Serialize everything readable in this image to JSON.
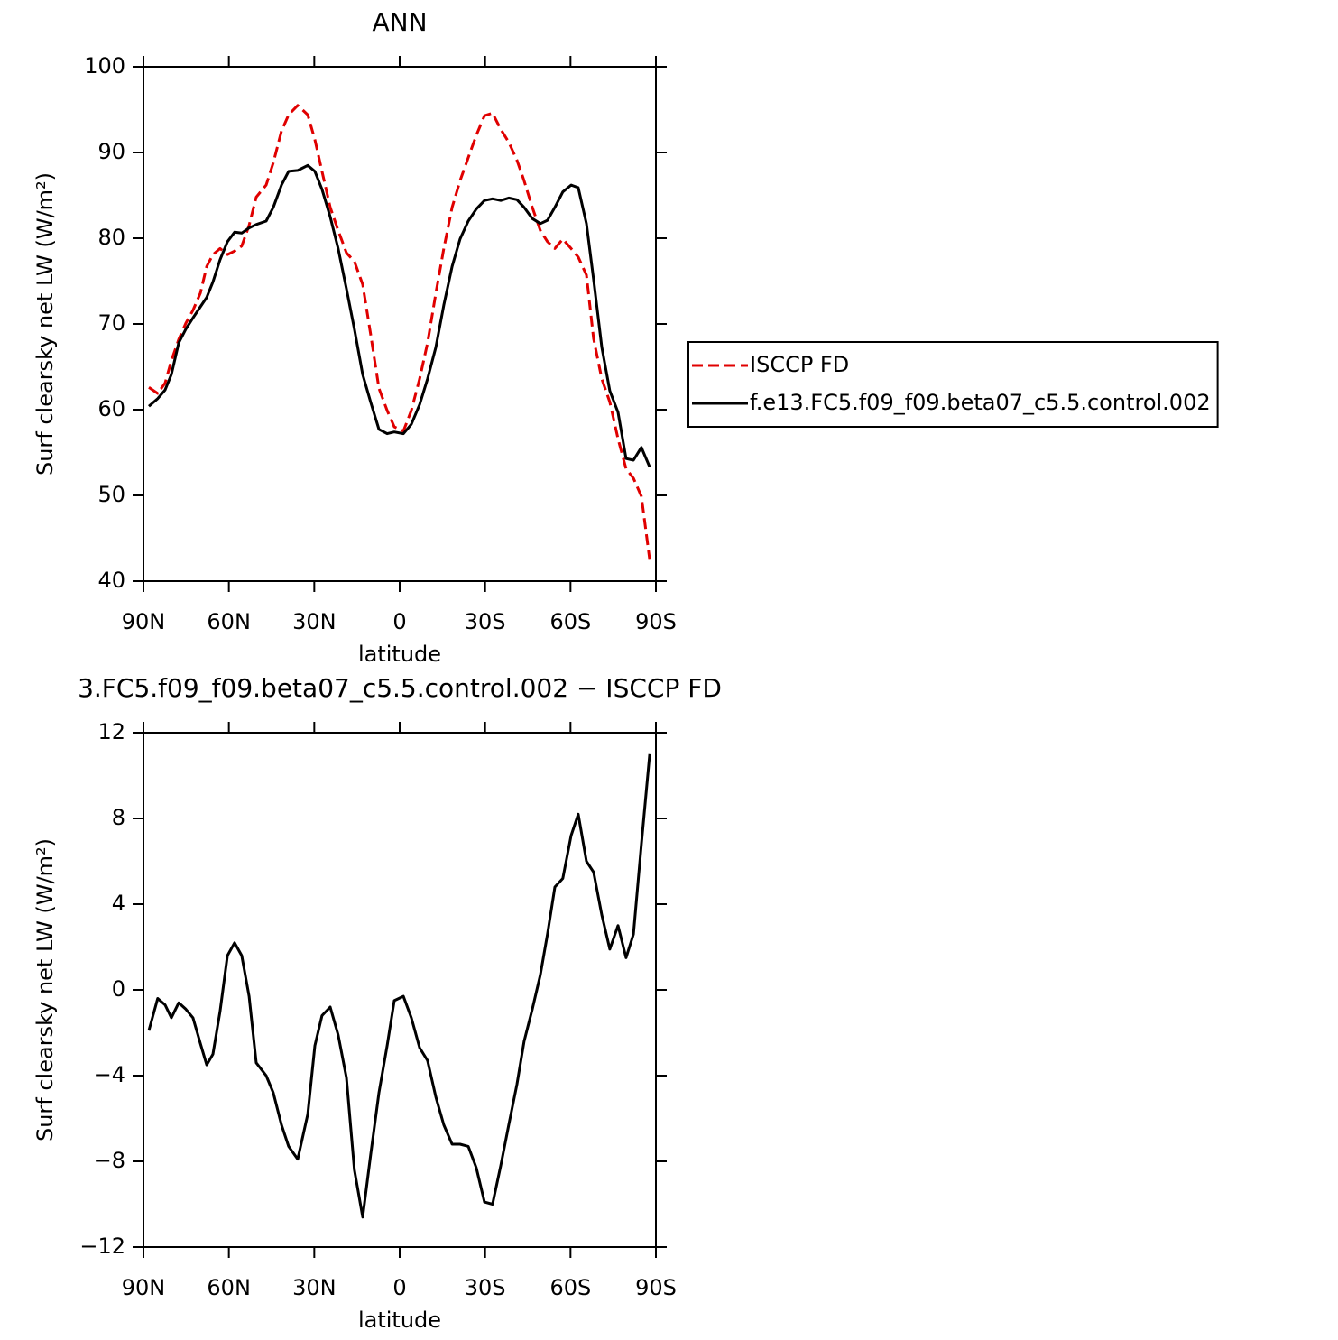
{
  "chart_data": [
    {
      "type": "line",
      "title": "ANN",
      "xlabel": "latitude",
      "ylabel": "Surf clearsky net LW (W/m²)",
      "xlim": [
        90,
        -90
      ],
      "xticks": [
        {
          "value": 90,
          "label": "90N"
        },
        {
          "value": 60,
          "label": "60N"
        },
        {
          "value": 30,
          "label": "30N"
        },
        0,
        {
          "value": -30,
          "label": "30S"
        },
        {
          "value": -60,
          "label": "60S"
        },
        {
          "value": -90,
          "label": "90S"
        }
      ],
      "ylim": [
        40,
        100
      ],
      "yticks": [
        40,
        50,
        60,
        70,
        80,
        90,
        100
      ],
      "legend": "right",
      "x": [
        88.1,
        85,
        82.4,
        80.2,
        77.6,
        75.1,
        72.6,
        70,
        67.8,
        65.6,
        63.1,
        60.5,
        58,
        55.5,
        52.9,
        50.4,
        46.9,
        44.4,
        41.5,
        39,
        35.8,
        32.3,
        29.8,
        27.3,
        24.4,
        21.6,
        18.7,
        15.9,
        13,
        10.2,
        7.3,
        4.4,
        1.9,
        -1.3,
        -4.1,
        -7,
        -9.8,
        -12.7,
        -15.5,
        -18.4,
        -21.2,
        -24.1,
        -26.9,
        -29.8,
        -32.6,
        -35.5,
        -38.3,
        -41.2,
        -43.7,
        -46.6,
        -49.4,
        -51.9,
        -54.5,
        -57.3,
        -60.2,
        -62.7,
        -65.6,
        -68.1,
        -71,
        -73.8,
        -76.7,
        -79.5,
        -82.1,
        -84.9,
        -87.8
      ],
      "series": [
        {
          "name": "ISCCP FD",
          "color": "#e00000",
          "linestyle": "dashed",
          "values": [
            62.6,
            61.9,
            63.1,
            65.7,
            68.2,
            70.1,
            71.6,
            73.6,
            76.7,
            78.1,
            78.8,
            78.1,
            78.5,
            79.1,
            81.5,
            84.8,
            86.2,
            88.8,
            92.5,
            94.4,
            95.5,
            94.4,
            91.5,
            87.8,
            83.6,
            80.9,
            78.3,
            77.3,
            74.6,
            68.8,
            62.5,
            59.9,
            58,
            57.5,
            59.9,
            63.6,
            67.8,
            73.6,
            78.8,
            83.6,
            86.7,
            89.4,
            92,
            94.3,
            94.6,
            92.7,
            91.2,
            89.1,
            86.7,
            83.6,
            80.9,
            79.6,
            78.8,
            79.9,
            78.8,
            77.8,
            75.7,
            68.3,
            63.6,
            60.9,
            56.6,
            53.1,
            52,
            49.9,
            42.5
          ]
        },
        {
          "name": "f.e13.FC5.f09_f09.beta07_c5.5.control.002",
          "color": "#000000",
          "linestyle": "solid",
          "values": [
            60.4,
            61.3,
            62.3,
            64.1,
            67.8,
            69.4,
            70.7,
            72,
            73.1,
            74.9,
            77.5,
            79.6,
            80.7,
            80.6,
            81.2,
            81.6,
            82,
            83.6,
            86.2,
            87.8,
            87.9,
            88.5,
            87.8,
            85.7,
            82.5,
            78.8,
            74.1,
            69.4,
            64.1,
            60.9,
            57.7,
            57.2,
            57.4,
            57.2,
            58.3,
            60.6,
            63.6,
            67.3,
            72.2,
            76.7,
            79.9,
            82,
            83.4,
            84.4,
            84.6,
            84.4,
            84.7,
            84.5,
            83.6,
            82.3,
            81.7,
            82.1,
            83.6,
            85.4,
            86.2,
            85.9,
            81.7,
            75.2,
            67.3,
            62.2,
            59.7,
            54.3,
            54.1,
            55.6,
            53.3
          ]
        }
      ]
    },
    {
      "type": "line",
      "title": "3.FC5.f09_f09.beta07_c5.5.control.002 − ISCCP FD",
      "xlabel": "latitude",
      "ylabel": "Surf clearsky net LW (W/m²)",
      "xlim": [
        90,
        -90
      ],
      "xticks": [
        {
          "value": 90,
          "label": "90N"
        },
        {
          "value": 60,
          "label": "60N"
        },
        {
          "value": 30,
          "label": "30N"
        },
        0,
        {
          "value": -30,
          "label": "30S"
        },
        {
          "value": -60,
          "label": "60S"
        },
        {
          "value": -90,
          "label": "90S"
        }
      ],
      "ylim": [
        -12,
        12
      ],
      "yticks": [
        {
          "value": -12,
          "label": "−12"
        },
        {
          "value": -8,
          "label": "−8"
        },
        {
          "value": -4,
          "label": "−4"
        },
        0,
        4,
        8,
        12
      ],
      "x": [
        88.1,
        85,
        82.4,
        80.2,
        77.6,
        75.1,
        72.6,
        70,
        67.8,
        65.6,
        63.1,
        60.5,
        58,
        55.5,
        52.9,
        50.4,
        46.9,
        44.4,
        41.5,
        39,
        35.8,
        32.3,
        29.8,
        27.3,
        24.4,
        21.6,
        18.7,
        15.9,
        13,
        10.2,
        7.3,
        4.4,
        1.9,
        -1.3,
        -4.1,
        -7,
        -9.8,
        -12.7,
        -15.5,
        -18.4,
        -21.2,
        -24.1,
        -26.9,
        -29.8,
        -32.6,
        -35.5,
        -38.3,
        -41.2,
        -43.7,
        -46.6,
        -49.4,
        -51.9,
        -54.5,
        -57.3,
        -60.2,
        -62.7,
        -65.6,
        -68.1,
        -71,
        -73.8,
        -76.7,
        -79.5,
        -82.1,
        -84.9,
        -87.8
      ],
      "color": "#000000",
      "values": [
        -1.9,
        -0.4,
        -0.7,
        -1.3,
        -0.6,
        -0.9,
        -1.3,
        -2.5,
        -3.5,
        -3,
        -1,
        1.6,
        2.2,
        1.6,
        -0.3,
        -3.4,
        -4,
        -4.8,
        -6.3,
        -7.3,
        -7.9,
        -5.8,
        -2.6,
        -1.2,
        -0.8,
        -2.1,
        -4.1,
        -8.4,
        -10.6,
        -7.7,
        -4.8,
        -2.6,
        -0.5,
        -0.3,
        -1.3,
        -2.7,
        -3.3,
        -5,
        -6.3,
        -7.2,
        -7.2,
        -7.3,
        -8.3,
        -9.9,
        -10,
        -8.2,
        -6.3,
        -4.4,
        -2.4,
        -0.9,
        0.7,
        2.6,
        4.8,
        5.2,
        7.2,
        8.2,
        6,
        5.5,
        3.5,
        1.9,
        3,
        1.5,
        2.6,
        6.8,
        11
      ]
    }
  ]
}
